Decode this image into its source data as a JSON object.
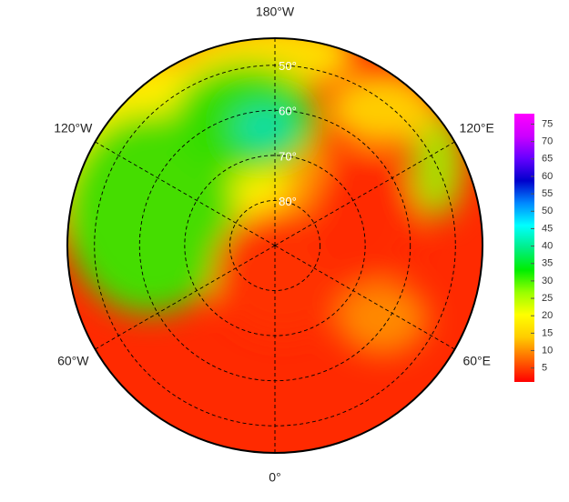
{
  "chart_data": {
    "type": "polar-map",
    "lon_ticks": [
      {
        "value": -180,
        "label": "180°W"
      },
      {
        "value": -120,
        "label": "120°W"
      },
      {
        "value": 120,
        "label": "120°E"
      },
      {
        "value": -60,
        "label": "60°W"
      },
      {
        "value": 60,
        "label": "60°E"
      },
      {
        "value": 0,
        "label": "0°"
      }
    ],
    "lat_ticks": [
      {
        "value": 50,
        "label": "50°"
      },
      {
        "value": 60,
        "label": "60°"
      },
      {
        "value": 70,
        "label": "70°"
      },
      {
        "value": 80,
        "label": "80°"
      }
    ],
    "lat_lim": [
      90,
      44
    ],
    "colorbar": {
      "lim": [
        1,
        78
      ],
      "ticks": [
        5,
        10,
        15,
        20,
        25,
        30,
        35,
        40,
        45,
        50,
        55,
        60,
        65,
        70,
        75
      ],
      "colormap": [
        "#ff0000",
        "#ff6600",
        "#ffcc00",
        "#ffff00",
        "#99ff00",
        "#00ee00",
        "#00ee88",
        "#00ffff",
        "#0088ff",
        "#0000cc",
        "#6600ff",
        "#cc00ff",
        "#ff00ff"
      ]
    }
  }
}
